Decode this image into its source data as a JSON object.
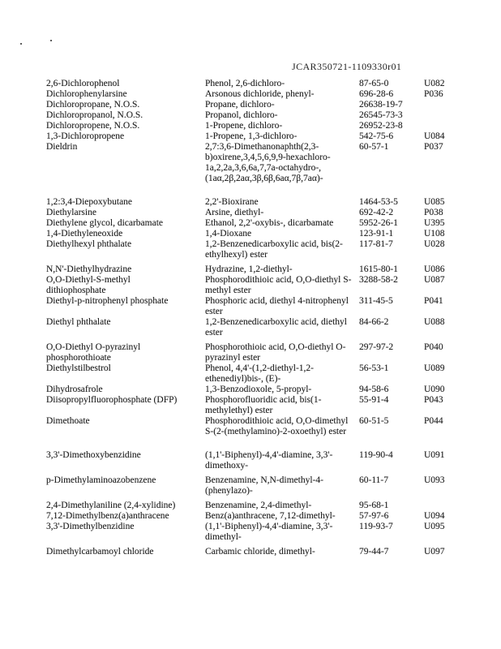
{
  "page": {
    "header_id": "JCAR350721-1109330r01"
  },
  "table": {
    "columns": [
      "hazardous-substance-name",
      "chemical-synonym",
      "cas-number",
      "waste-code"
    ],
    "rows": [
      {
        "gap": "none",
        "name": "2,6-Dichlorophenol",
        "synonym": "Phenol, 2,6-dichloro-",
        "cas": "87-65-0",
        "code": "U082"
      },
      {
        "gap": "none",
        "name": "Dichlorophenylarsine",
        "synonym": "Arsonous dichloride, phenyl-",
        "cas": "696-28-6",
        "code": "P036"
      },
      {
        "gap": "none",
        "name": "Dichloropropane, N.O.S.",
        "synonym": "Propane, dichloro-",
        "cas": "26638-19-7",
        "code": ""
      },
      {
        "gap": "none",
        "name": "Dichloropropanol, N.O.S.",
        "synonym": "Propanol, dichloro-",
        "cas": "26545-73-3",
        "code": ""
      },
      {
        "gap": "none",
        "name": "Dichloropropene, N.O.S.",
        "synonym": "1-Propene, dichloro-",
        "cas": "26952-23-8",
        "code": ""
      },
      {
        "gap": "none",
        "name": "1,3-Dichloropropene",
        "synonym": "1-Propene, 1,3-dichloro-",
        "cas": "542-75-6",
        "code": "U084"
      },
      {
        "gap": "none",
        "name": "Dieldrin",
        "synonym": "2,7:3,6-Dimethanonaphth(2,3-b)oxirene,3,4,5,6,9,9-hexachloro-1a,2,2a,3,6,6a,7,7a-octahydro-, (1aα,2β,2aα,3β,6β,6aα,7β,7aα)-",
        "cas": "60-57-1",
        "code": "P037"
      },
      {
        "gap": "large",
        "name": "1,2:3,4-Diepoxybutane",
        "synonym": "2,2'-Bioxirane",
        "cas": "1464-53-5",
        "code": "U085"
      },
      {
        "gap": "none",
        "name": "Diethylarsine",
        "synonym": "Arsine, diethyl-",
        "cas": "692-42-2",
        "code": "P038"
      },
      {
        "gap": "none",
        "name": "Diethylene glycol, dicarbamate",
        "synonym": "Ethanol, 2,2'-oxybis-, dicarbamate",
        "cas": "5952-26-1",
        "code": "U395"
      },
      {
        "gap": "none",
        "name": "1,4-Diethyleneoxide",
        "synonym": "1,4-Dioxane",
        "cas": "123-91-1",
        "code": "U108"
      },
      {
        "gap": "none",
        "name": "Diethylhexyl phthalate",
        "synonym": "1,2-Benzenedicarboxylic acid, bis(2-ethylhexyl) ester",
        "cas": "117-81-7",
        "code": "U028"
      },
      {
        "gap": "small",
        "name": "N,N'-Diethylhydrazine",
        "synonym": "Hydrazine, 1,2-diethyl-",
        "cas": "1615-80-1",
        "code": "U086"
      },
      {
        "gap": "none",
        "name": "O,O-Diethyl-S-methyl dithiophosphate",
        "synonym": "Phosphorodithioic acid, O,O-diethyl S-methyl ester",
        "cas": "3288-58-2",
        "code": "U087"
      },
      {
        "gap": "none",
        "name": "Diethyl-p-nitrophenyl phosphate",
        "synonym": "Phosphoric acid, diethyl 4-nitrophenyl ester",
        "cas": "311-45-5",
        "code": "P041"
      },
      {
        "gap": "none",
        "name": "Diethyl phthalate",
        "synonym": "1,2-Benzenedicarboxylic acid, diethyl ester",
        "cas": "84-66-2",
        "code": "U088"
      },
      {
        "gap": "small",
        "name": "O,O-Diethyl O-pyrazinyl phosphorothioate",
        "synonym": "Phosphorothioic acid, O,O-diethyl O-pyrazinyl ester",
        "cas": "297-97-2",
        "code": "P040"
      },
      {
        "gap": "none",
        "name": "Diethylstilbestrol",
        "synonym": "Phenol, 4,4'-(1,2-diethyl-1,2-ethenediyl)bis-, (E)-",
        "cas": "56-53-1",
        "code": "U089"
      },
      {
        "gap": "none",
        "name": "Dihydrosafrole",
        "synonym": "1,3-Benzodioxole, 5-propyl-",
        "cas": "94-58-6",
        "code": "U090"
      },
      {
        "gap": "none",
        "name": "Diisopropylfluorophosphate (DFP)",
        "synonym": "Phosphorofluoridic acid, bis(1-methylethyl) ester",
        "cas": "55-91-4",
        "code": "P043"
      },
      {
        "gap": "none",
        "name": "Dimethoate",
        "synonym": "Phosphorodithioic acid, O,O-dimethyl S-(2-(methylamino)-2-oxoethyl) ester",
        "cas": "60-51-5",
        "code": "P044"
      },
      {
        "gap": "large",
        "name": "3,3'-Dimethoxybenzidine",
        "synonym": "(1,1'-Biphenyl)-4,4'-diamine, 3,3'-dimethoxy-",
        "cas": "119-90-4",
        "code": "U091"
      },
      {
        "gap": "small",
        "name": "p-Dimethylaminoazobenzene",
        "synonym": "Benzenamine, N,N-dimethyl-4-(phenylazo)-",
        "cas": "60-11-7",
        "code": "U093"
      },
      {
        "gap": "small",
        "name": "2,4-Dimethylaniline (2,4-xylidine)",
        "synonym": "Benzenamine, 2,4-dimethyl-",
        "cas": "95-68-1",
        "code": ""
      },
      {
        "gap": "none",
        "name": "7,12-Dimethylbenz(a)anthracene",
        "synonym": "Benz(a)anthracene, 7,12-dimethyl-",
        "cas": "57-97-6",
        "code": "U094"
      },
      {
        "gap": "none",
        "name": "3,3'-Dimethylbenzidine",
        "synonym": "(1,1'-Biphenyl)-4,4'-diamine, 3,3'-dimethyl-",
        "cas": "119-93-7",
        "code": "U095"
      },
      {
        "gap": "small",
        "name": "Dimethylcarbamoyl chloride",
        "synonym": "Carbamic chloride, dimethyl-",
        "cas": "79-44-7",
        "code": "U097"
      }
    ]
  }
}
